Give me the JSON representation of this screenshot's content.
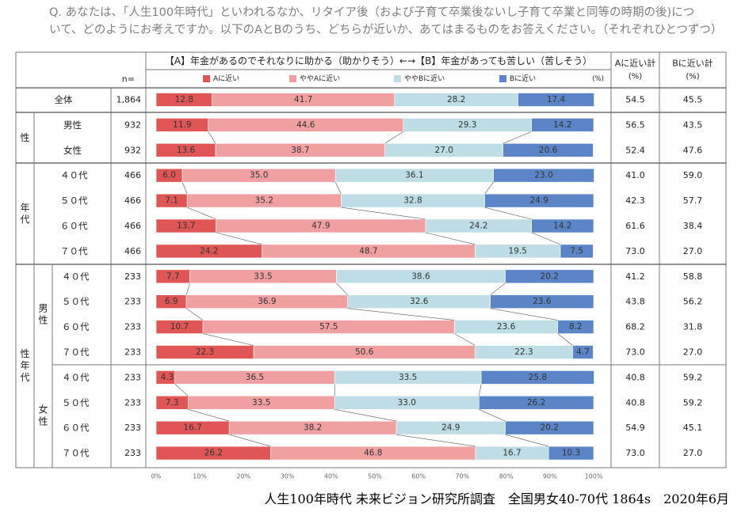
{
  "question": {
    "line1": "Q. あなたは、「人生100年時代」といわれるなか、リタイア後（および子育て卒業後ないし子育て卒業と同等の時期の後)につ",
    "line2": "いて、どのようにお考えですか。以下のAとBのうち、どちらが近いか、あてはまるものをお答えください。（それぞれひとつずつ）"
  },
  "header": {
    "n_label": "n=",
    "scale_title": "【A】年金があるのでそれなりに助かる（助かりそう）←→【B】年金があっても苦しい（苦しそう）",
    "pct_unit": "(%)",
    "col_a_sum_line1": "Aに近い計",
    "col_a_sum_line2": "(%)",
    "col_b_sum_line1": "Bに近い計",
    "col_b_sum_line2": "(%)"
  },
  "groups": {
    "sex": "性",
    "age": "年代",
    "sex_age": "性年代",
    "male": "男性",
    "female": "女性"
  },
  "colors": {
    "a_near": "#e05656",
    "somewhat_a": "#f0a0a0",
    "somewhat_b": "#bedde6",
    "b_near": "#5b85c6"
  },
  "chart_data": {
    "type": "bar",
    "orientation": "horizontal",
    "stacked": true,
    "title": "【A】年金があるのでそれなりに助かる（助かりそう）←→【B】年金があっても苦しい（苦しそう）",
    "legend": [
      "Aに近い",
      "ややAに近い",
      "ややBに近い",
      "Bに近い"
    ],
    "xlim": [
      0,
      100
    ],
    "x_ticks": [
      "0%",
      "10%",
      "20%",
      "30%",
      "40%",
      "50%",
      "60%",
      "70%",
      "80%",
      "90%",
      "100%"
    ],
    "rows": [
      {
        "label": "全体",
        "n": "1,864",
        "values": [
          12.8,
          41.7,
          28.2,
          17.4
        ],
        "a_sum": "54.5",
        "b_sum": "45.5"
      },
      {
        "label": "男性",
        "n": "932",
        "values": [
          11.9,
          44.6,
          29.3,
          14.2
        ],
        "a_sum": "56.5",
        "b_sum": "43.5"
      },
      {
        "label": "女性",
        "n": "932",
        "values": [
          13.6,
          38.7,
          27.0,
          20.6
        ],
        "a_sum": "52.4",
        "b_sum": "47.6"
      },
      {
        "label": "４０代",
        "n": "466",
        "values": [
          6.0,
          35.0,
          36.1,
          23.0
        ],
        "a_sum": "41.0",
        "b_sum": "59.0"
      },
      {
        "label": "５０代",
        "n": "466",
        "values": [
          7.1,
          35.2,
          32.8,
          24.9
        ],
        "a_sum": "42.3",
        "b_sum": "57.7"
      },
      {
        "label": "６０代",
        "n": "466",
        "values": [
          13.7,
          47.9,
          24.2,
          14.2
        ],
        "a_sum": "61.6",
        "b_sum": "38.4"
      },
      {
        "label": "７０代",
        "n": "466",
        "values": [
          24.2,
          48.7,
          19.5,
          7.5
        ],
        "a_sum": "73.0",
        "b_sum": "27.0"
      },
      {
        "label": "４０代",
        "n": "233",
        "values": [
          7.7,
          33.5,
          38.6,
          20.2
        ],
        "a_sum": "41.2",
        "b_sum": "58.8"
      },
      {
        "label": "５０代",
        "n": "233",
        "values": [
          6.9,
          36.9,
          32.6,
          23.6
        ],
        "a_sum": "43.8",
        "b_sum": "56.2"
      },
      {
        "label": "６０代",
        "n": "233",
        "values": [
          10.7,
          57.5,
          23.6,
          8.2
        ],
        "a_sum": "68.2",
        "b_sum": "31.8"
      },
      {
        "label": "７０代",
        "n": "233",
        "values": [
          22.3,
          50.6,
          22.3,
          4.7
        ],
        "a_sum": "73.0",
        "b_sum": "27.0"
      },
      {
        "label": "４０代",
        "n": "233",
        "values": [
          4.3,
          36.5,
          33.5,
          25.8
        ],
        "a_sum": "40.8",
        "b_sum": "59.2"
      },
      {
        "label": "５０代",
        "n": "233",
        "values": [
          7.3,
          33.5,
          33.0,
          26.2
        ],
        "a_sum": "40.8",
        "b_sum": "59.2"
      },
      {
        "label": "６０代",
        "n": "233",
        "values": [
          16.7,
          38.2,
          24.9,
          20.2
        ],
        "a_sum": "54.9",
        "b_sum": "45.1"
      },
      {
        "label": "７０代",
        "n": "233",
        "values": [
          26.2,
          46.8,
          16.7,
          10.3
        ],
        "a_sum": "73.0",
        "b_sum": "27.0"
      }
    ]
  },
  "source": "人生100年時代 未来ビジョン研究所調査　全国男女40-70代 1864s　2020年6月"
}
